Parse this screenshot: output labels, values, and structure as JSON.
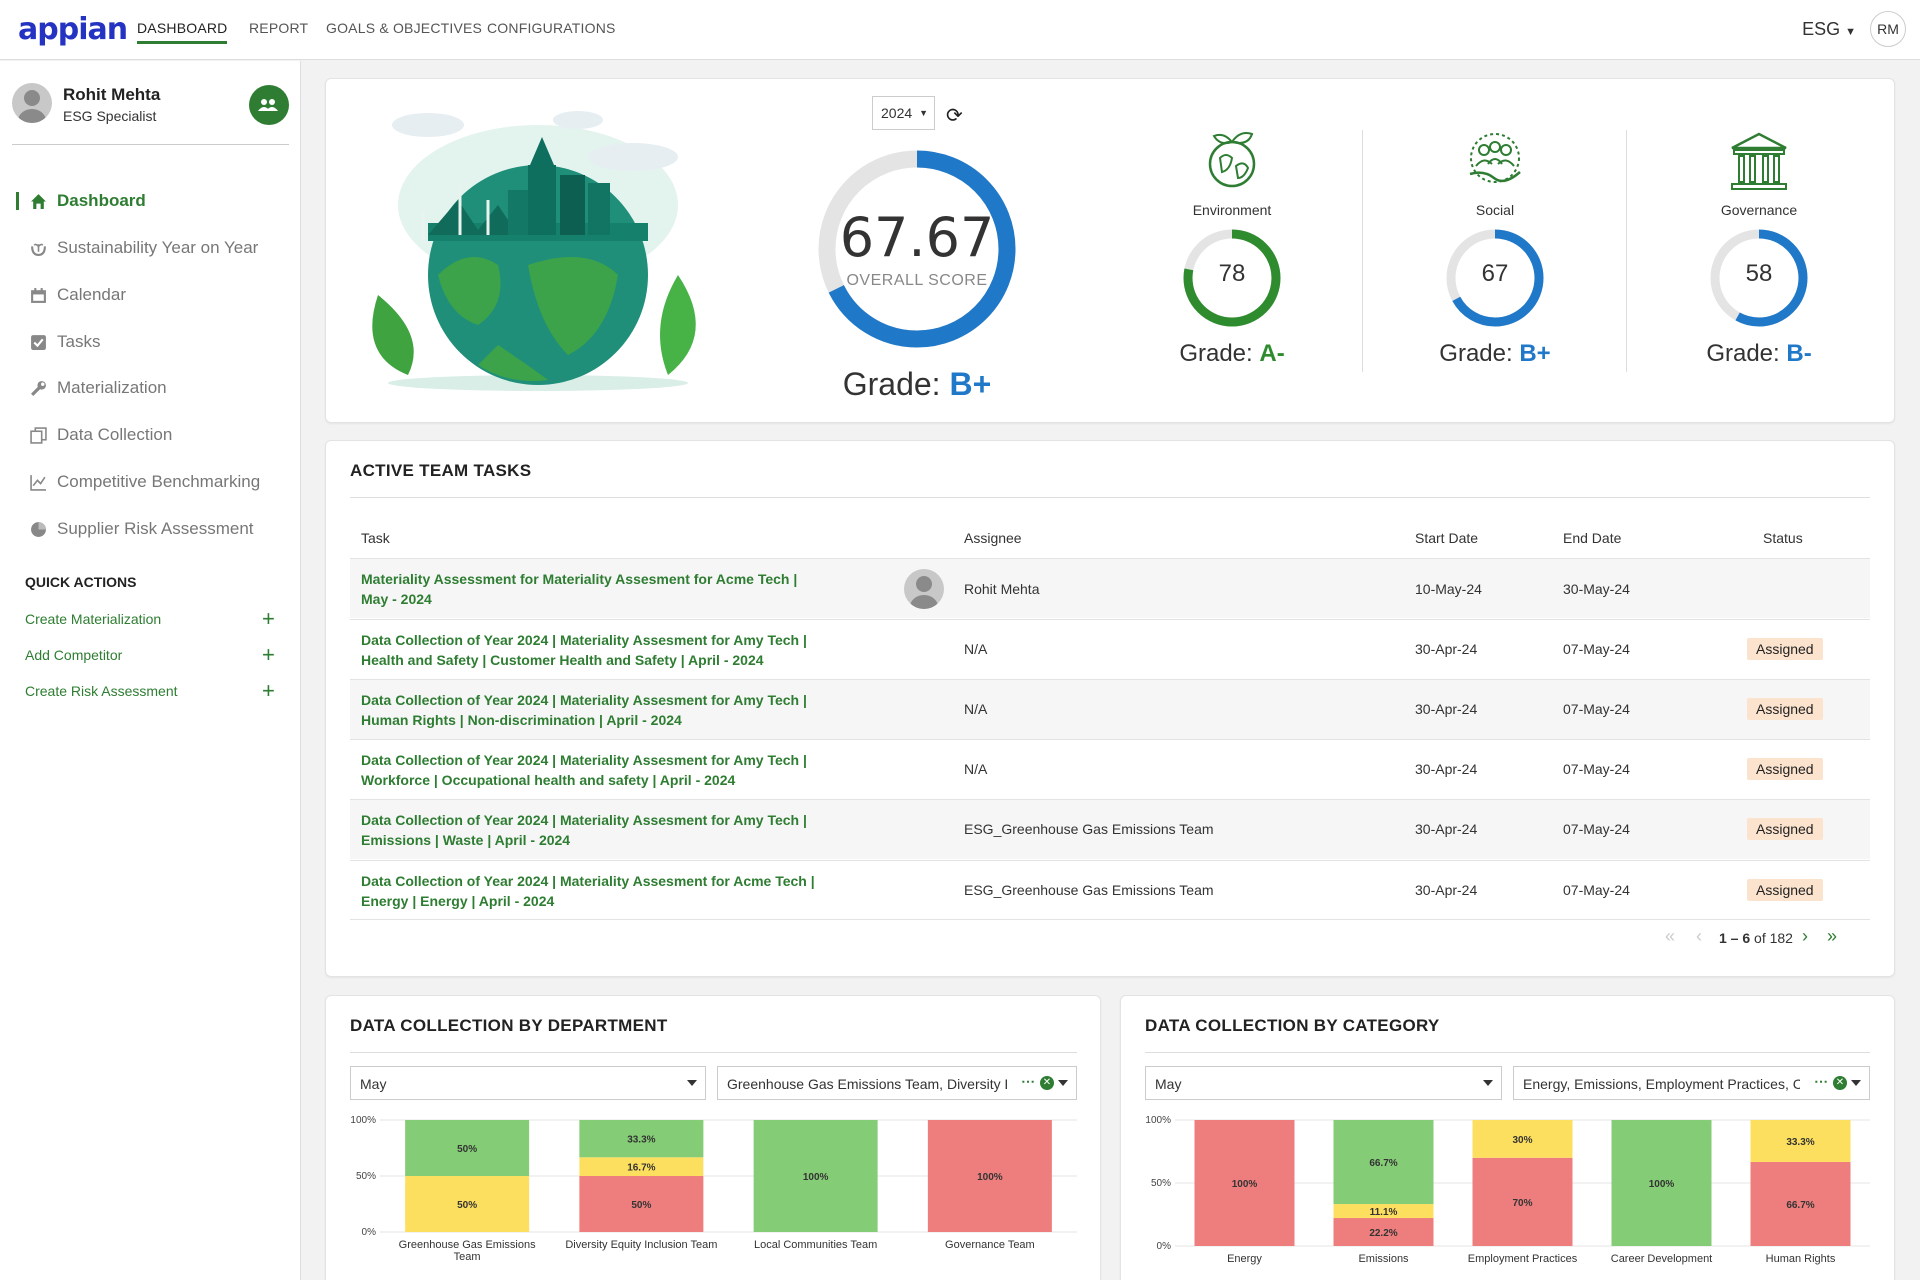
{
  "header": {
    "logo": "appian",
    "tabs": [
      {
        "label": "DASHBOARD"
      },
      {
        "label": "REPORT"
      },
      {
        "label": "GOALS & OBJECTIVES"
      },
      {
        "label": "CONFIGURATIONS"
      }
    ],
    "app_menu": "ESG",
    "user_initials": "RM"
  },
  "sidebar": {
    "user_name": "Rohit Mehta",
    "user_role": "ESG Specialist",
    "items": [
      {
        "label": "Dashboard",
        "icon": "home-icon"
      },
      {
        "label": "Sustainability Year on Year",
        "icon": "plant-hands-icon"
      },
      {
        "label": "Calendar",
        "icon": "calendar-icon"
      },
      {
        "label": "Tasks",
        "icon": "checkbox-icon"
      },
      {
        "label": "Materialization",
        "icon": "wrench-icon"
      },
      {
        "label": "Data Collection",
        "icon": "copy-icon"
      },
      {
        "label": "Competitive Benchmarking",
        "icon": "line-chart-icon"
      },
      {
        "label": "Supplier Risk Assessment",
        "icon": "pie-chart-icon"
      }
    ],
    "quick_actions_title": "QUICK ACTIONS",
    "quick_actions": [
      {
        "label": "Create Materialization"
      },
      {
        "label": "Add Competitor"
      },
      {
        "label": "Create Risk Assessment"
      }
    ]
  },
  "score": {
    "year": "2024",
    "overall_value": "67.67",
    "overall_fraction": 0.6767,
    "overall_label": "OVERALL SCORE",
    "grade_prefix": "Grade: ",
    "grade": "B+",
    "pillars": [
      {
        "label": "Environment",
        "value": "78",
        "fraction": 0.78,
        "grade": "A-",
        "color": "#2e8b2e"
      },
      {
        "label": "Social",
        "value": "67",
        "fraction": 0.67,
        "grade": "B+",
        "color": "#1f78c8"
      },
      {
        "label": "Governance",
        "value": "58",
        "fraction": 0.58,
        "grade": "B-",
        "color": "#1f78c8"
      }
    ]
  },
  "tasks": {
    "title": "ACTIVE TEAM TASKS",
    "columns": [
      "Task",
      "Assignee",
      "Start Date",
      "End Date",
      "Status"
    ],
    "rows": [
      {
        "line1": "Materiality Assessment for Materiality Assesment for Acme Tech |",
        "line2": "May - 2024",
        "assignee": "Rohit Mehta",
        "start": "10-May-24",
        "end": "30-May-24",
        "status": ""
      },
      {
        "line1": "Data Collection of Year 2024 | Materiality Assesment for Amy Tech |",
        "line2": "Health and Safety | Customer Health and Safety | April - 2024",
        "assignee": "N/A",
        "start": "30-Apr-24",
        "end": "07-May-24",
        "status": "Assigned"
      },
      {
        "line1": "Data Collection of Year 2024 | Materiality Assesment for Amy Tech |",
        "line2": "Human Rights | Non-discrimination | April - 2024",
        "assignee": "N/A",
        "start": "30-Apr-24",
        "end": "07-May-24",
        "status": "Assigned"
      },
      {
        "line1": "Data Collection of Year 2024 | Materiality Assesment for Amy Tech |",
        "line2": "Workforce | Occupational health and safety | April - 2024",
        "assignee": "N/A",
        "start": "30-Apr-24",
        "end": "07-May-24",
        "status": "Assigned"
      },
      {
        "line1": "Data Collection of Year 2024 | Materiality Assesment for Amy Tech |",
        "line2": "Emissions | Waste | April - 2024",
        "assignee": "ESG_Greenhouse Gas Emissions Team",
        "start": "30-Apr-24",
        "end": "07-May-24",
        "status": "Assigned"
      },
      {
        "line1": "Data Collection of Year 2024 | Materiality Assesment for Acme Tech |",
        "line2": "Energy | Energy | April - 2024",
        "assignee": "ESG_Greenhouse Gas Emissions Team",
        "start": "30-Apr-24",
        "end": "07-May-24",
        "status": "Assigned"
      }
    ],
    "pager_range": "1 – 6",
    "pager_total": " of 182"
  },
  "dept": {
    "title": "DATA COLLECTION BY DEPARTMENT",
    "month": "May",
    "filter": "Greenhouse Gas Emissions Team, Diversity Equity Inclusion Team"
  },
  "cat": {
    "title": "DATA COLLECTION BY CATEGORY",
    "month": "May",
    "filter": "Energy, Emissions, Employment Practices, Career Development, Human Rights"
  },
  "chart_data": [
    {
      "type": "bar",
      "stacked": true,
      "title": "DATA COLLECTION BY DEPARTMENT",
      "categories": [
        [
          "Greenhouse Gas Emissions",
          "Team"
        ],
        [
          "Diversity Equity Inclusion Team"
        ],
        [
          "Local Communities Team"
        ],
        [
          "Governance Team"
        ]
      ],
      "yticks": [
        "100%",
        "50%",
        "0%"
      ],
      "ylim": [
        0,
        100
      ],
      "series_colors": [
        "#ee7e7e",
        "#fddf5f",
        "#85cc76"
      ],
      "stacks": [
        [
          {
            "value": 0,
            "label": ""
          },
          {
            "value": 50,
            "label": "50%"
          },
          {
            "value": 50,
            "label": "50%"
          }
        ],
        [
          {
            "value": 50,
            "label": "50%"
          },
          {
            "value": 16.7,
            "label": "16.7%"
          },
          {
            "value": 33.3,
            "label": "33.3%"
          }
        ],
        [
          {
            "value": 0,
            "label": ""
          },
          {
            "value": 0,
            "label": ""
          },
          {
            "value": 100,
            "label": "100%"
          }
        ],
        [
          {
            "value": 100,
            "label": "100%"
          },
          {
            "value": 0,
            "label": ""
          },
          {
            "value": 0,
            "label": ""
          }
        ]
      ]
    },
    {
      "type": "bar",
      "stacked": true,
      "title": "DATA COLLECTION BY CATEGORY",
      "categories": [
        [
          "Energy"
        ],
        [
          "Emissions"
        ],
        [
          "Employment Practices"
        ],
        [
          "Career Development"
        ],
        [
          "Human Rights"
        ]
      ],
      "yticks": [
        "100%",
        "50%",
        "0%"
      ],
      "ylim": [
        0,
        100
      ],
      "series_colors": [
        "#ee7e7e",
        "#fddf5f",
        "#85cc76"
      ],
      "stacks": [
        [
          {
            "value": 100,
            "label": "100%"
          },
          {
            "value": 0,
            "label": ""
          },
          {
            "value": 0,
            "label": ""
          }
        ],
        [
          {
            "value": 22.2,
            "label": "22.2%"
          },
          {
            "value": 11.1,
            "label": "11.1%"
          },
          {
            "value": 66.7,
            "label": "66.7%"
          }
        ],
        [
          {
            "value": 70,
            "label": "70%"
          },
          {
            "value": 30,
            "label": "30%"
          },
          {
            "value": 0,
            "label": ""
          }
        ],
        [
          {
            "value": 0,
            "label": ""
          },
          {
            "value": 0,
            "label": ""
          },
          {
            "value": 100,
            "label": "100%"
          }
        ],
        [
          {
            "value": 66.7,
            "label": "66.7%"
          },
          {
            "value": 33.3,
            "label": "33.3%"
          },
          {
            "value": 0,
            "label": ""
          }
        ]
      ]
    }
  ]
}
